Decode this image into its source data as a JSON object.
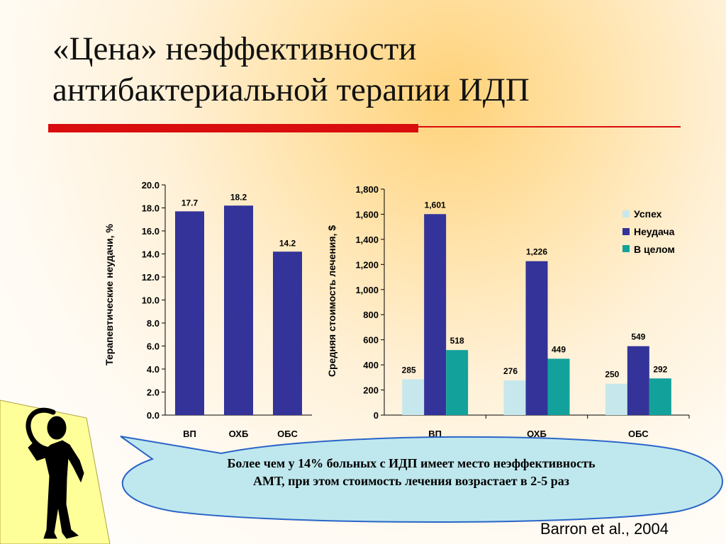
{
  "title": {
    "line1": "«Цена» неэффективности",
    "line2": "антибактериальной терапии ИДП"
  },
  "chart_data": [
    {
      "type": "bar",
      "title": "",
      "ylabel": "Терапевтические неудачи, %",
      "xlabel": "",
      "categories": [
        "ВП",
        "ОХБ",
        "ОБС"
      ],
      "series": [
        {
          "values": [
            17.7,
            18.2,
            14.2
          ]
        }
      ],
      "data_labels": [
        "17.7",
        "18.2",
        "14.2"
      ],
      "ylim": [
        0,
        20
      ],
      "yticks": [
        "0.0",
        "2.0",
        "4.0",
        "6.0",
        "8.0",
        "10.0",
        "12.0",
        "14.0",
        "16.0",
        "18.0",
        "20.0"
      ],
      "colors": [
        "#333399"
      ],
      "grid": false
    },
    {
      "type": "bar",
      "title": "",
      "ylabel": "Средняя стоимость лечения, $",
      "xlabel": "",
      "categories": [
        "ВП",
        "ОХБ",
        "ОБС"
      ],
      "series": [
        {
          "name": "Успех",
          "values": [
            285,
            276,
            250
          ],
          "labels": [
            "285",
            "276",
            "250"
          ],
          "color": "#c6e8ec"
        },
        {
          "name": "Неудача",
          "values": [
            1601,
            1226,
            549
          ],
          "labels": [
            "1,601",
            "1,226",
            "549"
          ],
          "color": "#333399"
        },
        {
          "name": "В целом",
          "values": [
            518,
            449,
            292
          ],
          "labels": [
            "518",
            "449",
            "292"
          ],
          "color": "#13a19c"
        }
      ],
      "ylim": [
        0,
        1800
      ],
      "yticks": [
        "0",
        "200",
        "400",
        "600",
        "800",
        "1,000",
        "1,200",
        "1,400",
        "1,600",
        "1,800"
      ],
      "legend": "right",
      "grid": false
    }
  ],
  "callout": {
    "text": "Более чем у 14% больных с ИДП имеет место неэффективность АМТ, при этом стоимость лечения возрастает в 2-5 раз"
  },
  "source": "Barron et al., 2004",
  "icons": [
    "thinking-person-icon"
  ],
  "colors": {
    "accent_rule": "#d90d0d",
    "callout_fill": "#bfe8ee",
    "callout_stroke": "#2a64c8",
    "shape_yellow": "#ffff99"
  }
}
